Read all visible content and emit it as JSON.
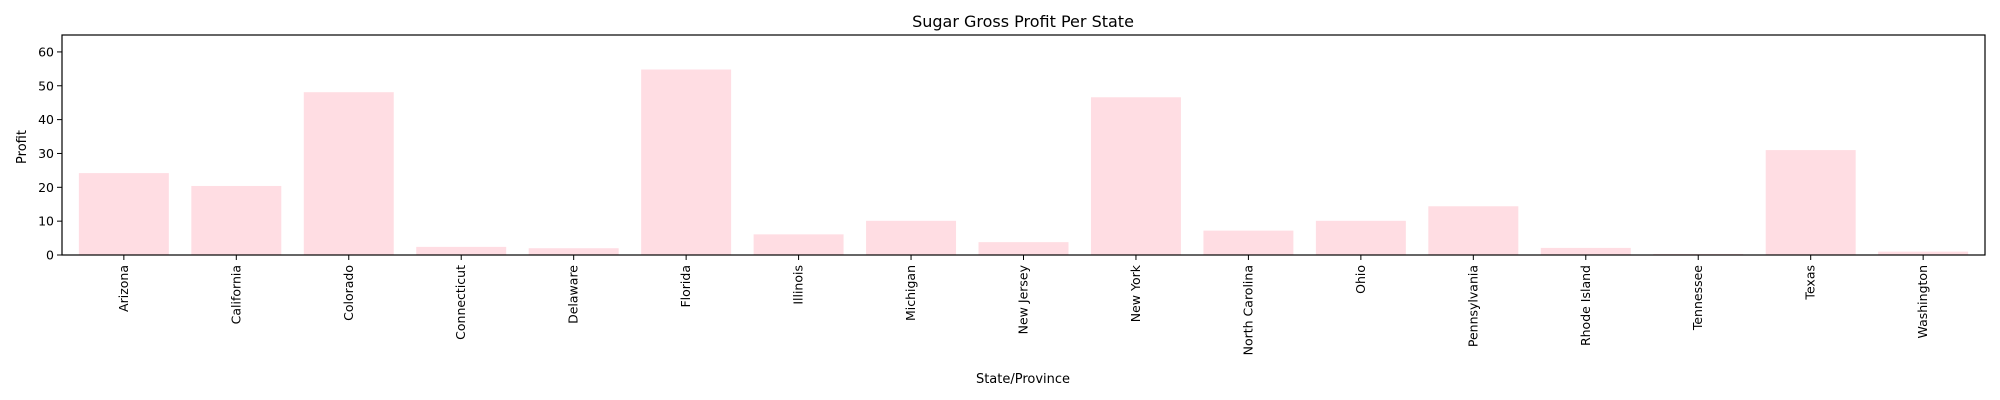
{
  "chart_data": {
    "type": "bar",
    "title": "Sugar Gross Profit Per State",
    "xlabel": "State/Province",
    "ylabel": "Profit",
    "categories": [
      "Arizona",
      "California",
      "Colorado",
      "Connecticut",
      "Delaware",
      "Florida",
      "Illinois",
      "Michigan",
      "New Jersey",
      "New York",
      "North Carolina",
      "Ohio",
      "Pennsylvania",
      "Rhode Island",
      "Tennessee",
      "Texas",
      "Washington"
    ],
    "values": [
      24.2,
      20.4,
      48.1,
      2.4,
      2.0,
      54.8,
      6.1,
      10.1,
      3.8,
      46.6,
      7.2,
      10.1,
      14.4,
      2.1,
      0.3,
      31.0,
      1.0
    ],
    "ylim": [
      0,
      65
    ],
    "yticks": [
      0,
      10,
      20,
      30,
      40,
      50,
      60
    ],
    "grid": false,
    "legend": "none",
    "bar_color": "#ffdde3"
  }
}
